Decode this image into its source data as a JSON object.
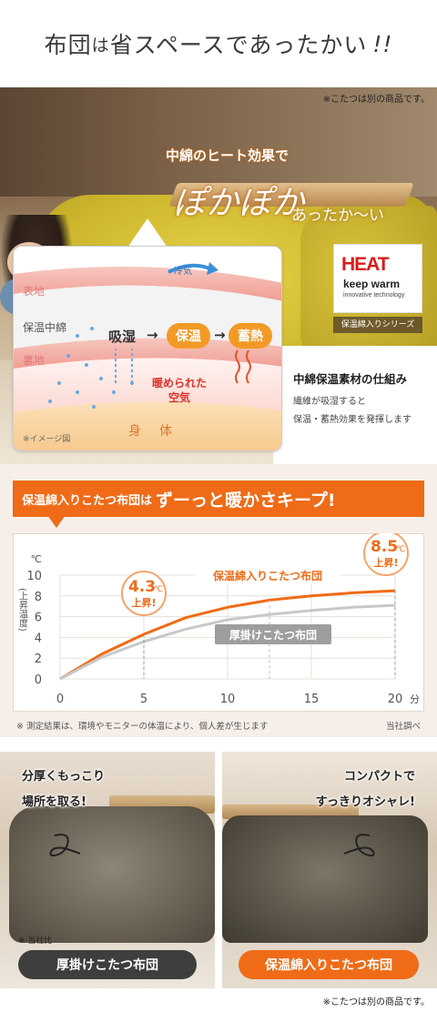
{
  "header": {
    "title_main": "布団",
    "title_small": "は",
    "title_rest": "省スペースであったかい",
    "title_excl": "!!"
  },
  "photo": {
    "note": "※こたつは別の商品です。",
    "catch_line1": "中綿のヒート効果で",
    "catch_line2": "ぽかぽか",
    "catch_line3": "あったか〜い"
  },
  "heat": {
    "logo": "HEAT",
    "keep": "keep warm",
    "tech": "innovative technology",
    "series": "保温綿入りシリーズ"
  },
  "diagram": {
    "cool_air": "冷気",
    "outer": "表地",
    "filling": "保温中綿",
    "inner": "裏地",
    "absorb": "吸湿",
    "arrow": "→",
    "insulate": "保温",
    "store_heat": "蓄熱",
    "warmed_l1": "暖められた",
    "warmed_l2": "空気",
    "body": "身体",
    "image_note": "※イメージ図"
  },
  "mechanism": {
    "title": "中綿保温素材の仕組み",
    "desc_l1": "繊維が吸湿すると",
    "desc_l2": "保温・蓄熱効果を発揮します"
  },
  "banner": {
    "lead": "保温綿入りこたつ布団は",
    "main": "ずーっと暖かさキープ!"
  },
  "chart_data": {
    "type": "line",
    "yunit": "℃",
    "ylabel": "(上昇温度)",
    "xunit": "分",
    "xlim": [
      0,
      20
    ],
    "ylim": [
      0,
      10
    ],
    "xticks": [
      0,
      5,
      10,
      15,
      20
    ],
    "yticks": [
      0,
      2,
      4,
      6,
      8,
      10
    ],
    "series": [
      {
        "name": "保温綿入りこたつ布団",
        "color": "#ef6b17",
        "x": [
          0,
          2.5,
          5,
          7.5,
          10,
          12.5,
          15,
          17.5,
          20
        ],
        "y": [
          0,
          2.4,
          4.3,
          5.9,
          6.9,
          7.6,
          8.0,
          8.3,
          8.5
        ]
      },
      {
        "name": "厚掛けこたつ布団",
        "color": "#c8c8c8",
        "x": [
          0,
          2.5,
          5,
          7.5,
          10,
          12.5,
          15,
          17.5,
          20
        ],
        "y": [
          0,
          2.1,
          3.6,
          4.8,
          5.7,
          6.2,
          6.6,
          6.9,
          7.1
        ]
      }
    ],
    "callouts": [
      {
        "value": "4.3",
        "unit": "℃",
        "text": "上昇!"
      },
      {
        "value": "8.5",
        "unit": "℃",
        "text": "上昇!"
      }
    ],
    "note": "※ 測定結果は、環境やモニターの体温により、個人差が生じます",
    "source": "当社調べ"
  },
  "compare": {
    "left_l1": "分厚くもっこり",
    "left_l2": "場所を取る!",
    "right_l1": "コンパクトで",
    "right_l2": "すっきりオシャレ!",
    "left_note": "※ 当社比",
    "left_label": "厚掛けこたつ布団",
    "right_label": "保温綿入りこたつ布団",
    "bottom_note": "※こたつは別の商品です。"
  }
}
